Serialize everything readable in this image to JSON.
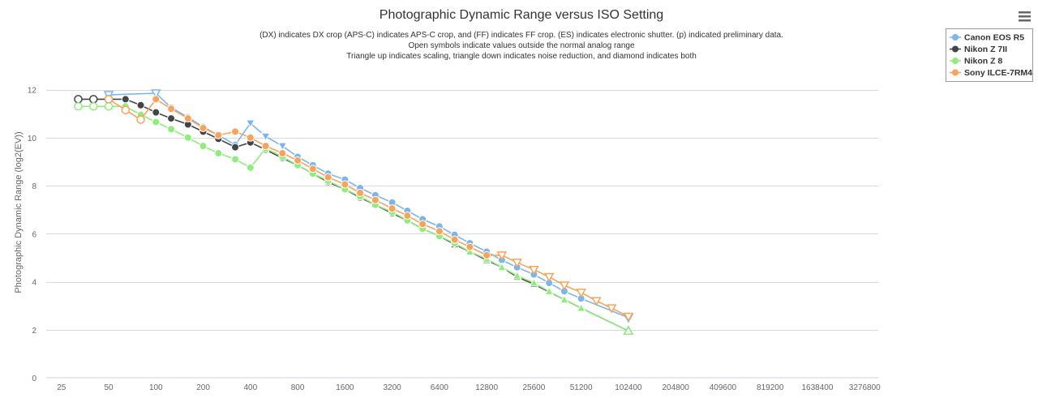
{
  "chart_data": {
    "type": "line",
    "title": "Photographic Dynamic Range versus ISO Setting",
    "subtitle": [
      "(DX) indicates DX crop (APS-C) indicates APS-C crop, and (FF) indicates FF crop. (ES) indicates electronic shutter. (p) indicated preliminary data.",
      "Open symbols indicate values outside the normal analog range",
      "Triangle up indicates scaling, triangle down indicates noise reduction, and diamond indicates both"
    ],
    "ylabel": "Photographic Dynamic Range (log2(EV))",
    "xlabel": "",
    "x_scale": "log2",
    "x_ticks": [
      25,
      50,
      100,
      200,
      400,
      800,
      1600,
      3200,
      6400,
      12800,
      25600,
      51200,
      102400,
      204800,
      409600,
      819200,
      1638400,
      3276800
    ],
    "y_ticks": [
      0,
      2,
      4,
      6,
      8,
      10,
      12
    ],
    "ylim": [
      0,
      13.2
    ],
    "grid": "horizontal",
    "legend_position": "top-right",
    "series": [
      {
        "name": "Canon EOS R5",
        "color": "#7cb5ec",
        "points": [
          {
            "x": 50,
            "y": 11.78,
            "m": "tri-down-open"
          },
          {
            "x": 100,
            "y": 11.85,
            "m": "tri-down-open"
          },
          {
            "x": 125,
            "y": 11.25,
            "m": "circle"
          },
          {
            "x": 160,
            "y": 10.85,
            "m": "circle"
          },
          {
            "x": 200,
            "y": 10.45,
            "m": "circle"
          },
          {
            "x": 250,
            "y": 10.1,
            "m": "circle"
          },
          {
            "x": 320,
            "y": 9.7,
            "m": "circle"
          },
          {
            "x": 400,
            "y": 10.6,
            "m": "tri-down"
          },
          {
            "x": 500,
            "y": 10.05,
            "m": "tri-down"
          },
          {
            "x": 640,
            "y": 9.65,
            "m": "tri-down"
          },
          {
            "x": 800,
            "y": 9.2,
            "m": "circle"
          },
          {
            "x": 1000,
            "y": 8.85,
            "m": "circle"
          },
          {
            "x": 1250,
            "y": 8.5,
            "m": "circle"
          },
          {
            "x": 1600,
            "y": 8.25,
            "m": "circle"
          },
          {
            "x": 2000,
            "y": 7.9,
            "m": "circle"
          },
          {
            "x": 2500,
            "y": 7.6,
            "m": "circle"
          },
          {
            "x": 3200,
            "y": 7.3,
            "m": "circle"
          },
          {
            "x": 4000,
            "y": 6.95,
            "m": "circle"
          },
          {
            "x": 5000,
            "y": 6.6,
            "m": "circle"
          },
          {
            "x": 6400,
            "y": 6.3,
            "m": "circle"
          },
          {
            "x": 8000,
            "y": 5.95,
            "m": "circle"
          },
          {
            "x": 10000,
            "y": 5.6,
            "m": "circle"
          },
          {
            "x": 12800,
            "y": 5.25,
            "m": "circle"
          },
          {
            "x": 16000,
            "y": 4.9,
            "m": "circle"
          },
          {
            "x": 20000,
            "y": 4.6,
            "m": "circle"
          },
          {
            "x": 25600,
            "y": 4.3,
            "m": "circle"
          },
          {
            "x": 32000,
            "y": 3.95,
            "m": "circle"
          },
          {
            "x": 40000,
            "y": 3.6,
            "m": "circle"
          },
          {
            "x": 51200,
            "y": 3.3,
            "m": "circle"
          },
          {
            "x": 102400,
            "y": 2.5,
            "m": "tri-down-open"
          }
        ]
      },
      {
        "name": "Nikon Z 7II",
        "color": "#434348",
        "points": [
          {
            "x": 32,
            "y": 11.6,
            "m": "circle-open"
          },
          {
            "x": 40,
            "y": 11.6,
            "m": "circle-open"
          },
          {
            "x": 50,
            "y": 11.6,
            "m": "circle-open"
          },
          {
            "x": 64,
            "y": 11.6,
            "m": "circle"
          },
          {
            "x": 80,
            "y": 11.35,
            "m": "circle"
          },
          {
            "x": 100,
            "y": 11.05,
            "m": "circle"
          },
          {
            "x": 125,
            "y": 10.8,
            "m": "circle"
          },
          {
            "x": 160,
            "y": 10.55,
            "m": "circle"
          },
          {
            "x": 200,
            "y": 10.25,
            "m": "circle"
          },
          {
            "x": 250,
            "y": 9.95,
            "m": "circle"
          },
          {
            "x": 320,
            "y": 9.6,
            "m": "circle"
          },
          {
            "x": 400,
            "y": 9.8,
            "m": "circle"
          },
          {
            "x": 500,
            "y": 9.5,
            "m": "circle"
          },
          {
            "x": 640,
            "y": 9.15,
            "m": "circle"
          },
          {
            "x": 800,
            "y": 8.85,
            "m": "circle"
          },
          {
            "x": 1000,
            "y": 8.5,
            "m": "circle"
          },
          {
            "x": 1250,
            "y": 8.15,
            "m": "circle"
          },
          {
            "x": 1600,
            "y": 7.85,
            "m": "circle"
          },
          {
            "x": 2000,
            "y": 7.5,
            "m": "circle"
          },
          {
            "x": 2500,
            "y": 7.2,
            "m": "circle"
          },
          {
            "x": 3200,
            "y": 6.85,
            "m": "circle"
          },
          {
            "x": 4000,
            "y": 6.55,
            "m": "circle"
          },
          {
            "x": 5000,
            "y": 6.2,
            "m": "circle"
          },
          {
            "x": 6400,
            "y": 5.9,
            "m": "circle"
          },
          {
            "x": 8000,
            "y": 5.55,
            "m": "tri-up"
          },
          {
            "x": 10000,
            "y": 5.25,
            "m": "tri-up"
          },
          {
            "x": 12800,
            "y": 4.9,
            "m": "tri-up"
          },
          {
            "x": 16000,
            "y": 4.6,
            "m": "tri-up"
          },
          {
            "x": 20000,
            "y": 4.2,
            "m": "tri-up"
          },
          {
            "x": 25600,
            "y": 3.9,
            "m": "tri-up"
          },
          {
            "x": 51200,
            "y": 2.9,
            "m": "tri-up"
          },
          {
            "x": 102400,
            "y": 1.95,
            "m": "tri-up-open"
          }
        ]
      },
      {
        "name": "Nikon Z 8",
        "color": "#90ed7d",
        "points": [
          {
            "x": 32,
            "y": 11.3,
            "m": "circle-open"
          },
          {
            "x": 40,
            "y": 11.3,
            "m": "circle-open"
          },
          {
            "x": 50,
            "y": 11.3,
            "m": "circle-open"
          },
          {
            "x": 64,
            "y": 11.3,
            "m": "circle"
          },
          {
            "x": 80,
            "y": 10.95,
            "m": "circle"
          },
          {
            "x": 100,
            "y": 10.65,
            "m": "circle"
          },
          {
            "x": 125,
            "y": 10.35,
            "m": "circle"
          },
          {
            "x": 160,
            "y": 10.0,
            "m": "circle"
          },
          {
            "x": 200,
            "y": 9.65,
            "m": "circle"
          },
          {
            "x": 250,
            "y": 9.35,
            "m": "circle"
          },
          {
            "x": 320,
            "y": 9.1,
            "m": "circle"
          },
          {
            "x": 400,
            "y": 8.75,
            "m": "circle"
          },
          {
            "x": 500,
            "y": 9.55,
            "m": "circle"
          },
          {
            "x": 640,
            "y": 9.2,
            "m": "circle"
          },
          {
            "x": 800,
            "y": 8.85,
            "m": "circle"
          },
          {
            "x": 1000,
            "y": 8.5,
            "m": "circle"
          },
          {
            "x": 1250,
            "y": 8.2,
            "m": "circle"
          },
          {
            "x": 1600,
            "y": 7.85,
            "m": "circle"
          },
          {
            "x": 2000,
            "y": 7.55,
            "m": "circle"
          },
          {
            "x": 2500,
            "y": 7.2,
            "m": "circle"
          },
          {
            "x": 3200,
            "y": 6.9,
            "m": "circle"
          },
          {
            "x": 4000,
            "y": 6.55,
            "m": "circle"
          },
          {
            "x": 5000,
            "y": 6.2,
            "m": "circle"
          },
          {
            "x": 6400,
            "y": 5.9,
            "m": "circle"
          },
          {
            "x": 8000,
            "y": 5.6,
            "m": "circle"
          },
          {
            "x": 10000,
            "y": 5.25,
            "m": "tri-up"
          },
          {
            "x": 12800,
            "y": 4.95,
            "m": "tri-up"
          },
          {
            "x": 16000,
            "y": 4.6,
            "m": "tri-up"
          },
          {
            "x": 20000,
            "y": 4.25,
            "m": "tri-up"
          },
          {
            "x": 25600,
            "y": 3.95,
            "m": "tri-up"
          },
          {
            "x": 32000,
            "y": 3.6,
            "m": "tri-up"
          },
          {
            "x": 40000,
            "y": 3.25,
            "m": "tri-up"
          },
          {
            "x": 51200,
            "y": 2.9,
            "m": "tri-up"
          },
          {
            "x": 102400,
            "y": 1.95,
            "m": "tri-up-open"
          }
        ]
      },
      {
        "name": "Sony ILCE-7RM4",
        "color": "#f7a35c",
        "points": [
          {
            "x": 50,
            "y": 11.6,
            "m": "circle-open"
          },
          {
            "x": 64,
            "y": 11.15,
            "m": "circle-open"
          },
          {
            "x": 80,
            "y": 10.75,
            "m": "circle-open"
          },
          {
            "x": 100,
            "y": 11.6,
            "m": "circle"
          },
          {
            "x": 125,
            "y": 11.2,
            "m": "circle"
          },
          {
            "x": 160,
            "y": 10.8,
            "m": "circle"
          },
          {
            "x": 200,
            "y": 10.4,
            "m": "circle"
          },
          {
            "x": 250,
            "y": 10.1,
            "m": "circle"
          },
          {
            "x": 320,
            "y": 10.25,
            "m": "circle"
          },
          {
            "x": 400,
            "y": 10.0,
            "m": "circle"
          },
          {
            "x": 500,
            "y": 9.65,
            "m": "circle"
          },
          {
            "x": 640,
            "y": 9.35,
            "m": "circle"
          },
          {
            "x": 800,
            "y": 9.05,
            "m": "circle"
          },
          {
            "x": 1000,
            "y": 8.7,
            "m": "circle"
          },
          {
            "x": 1250,
            "y": 8.35,
            "m": "circle"
          },
          {
            "x": 1600,
            "y": 8.05,
            "m": "circle"
          },
          {
            "x": 2000,
            "y": 7.7,
            "m": "circle"
          },
          {
            "x": 2500,
            "y": 7.4,
            "m": "circle"
          },
          {
            "x": 3200,
            "y": 7.05,
            "m": "circle"
          },
          {
            "x": 4000,
            "y": 6.75,
            "m": "circle"
          },
          {
            "x": 5000,
            "y": 6.4,
            "m": "circle"
          },
          {
            "x": 6400,
            "y": 6.1,
            "m": "circle"
          },
          {
            "x": 8000,
            "y": 5.75,
            "m": "circle"
          },
          {
            "x": 10000,
            "y": 5.45,
            "m": "circle"
          },
          {
            "x": 12800,
            "y": 5.1,
            "m": "circle"
          },
          {
            "x": 16000,
            "y": 5.1,
            "m": "tri-down-open"
          },
          {
            "x": 20000,
            "y": 4.8,
            "m": "tri-down-open"
          },
          {
            "x": 25600,
            "y": 4.5,
            "m": "tri-down-open"
          },
          {
            "x": 32000,
            "y": 4.2,
            "m": "tri-down-open"
          },
          {
            "x": 40000,
            "y": 3.85,
            "m": "tri-down-open"
          },
          {
            "x": 51200,
            "y": 3.55,
            "m": "tri-down-open"
          },
          {
            "x": 64000,
            "y": 3.2,
            "m": "tri-down-open"
          },
          {
            "x": 80000,
            "y": 2.9,
            "m": "tri-down-open"
          },
          {
            "x": 102400,
            "y": 2.55,
            "m": "tri-down-open"
          }
        ]
      }
    ]
  },
  "menu": {
    "icon": "hamburger-menu-icon"
  }
}
